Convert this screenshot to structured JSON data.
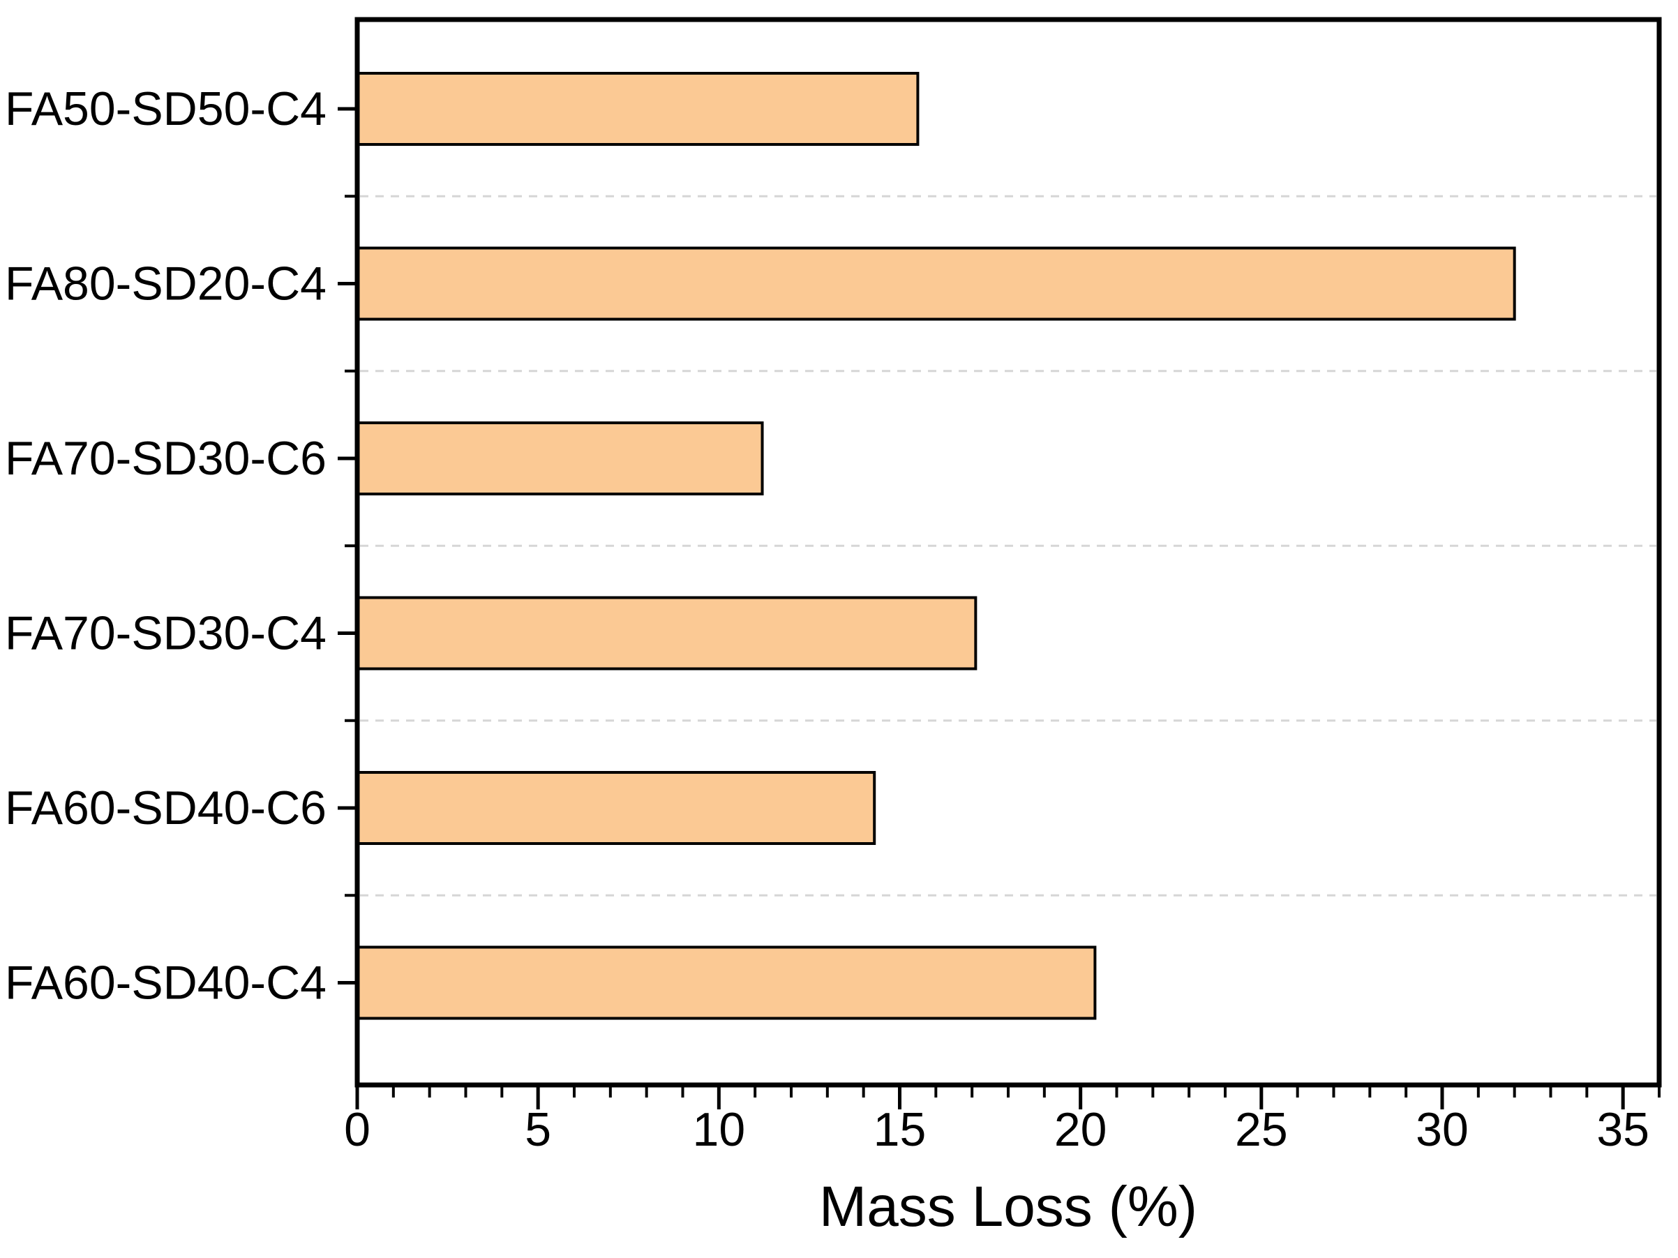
{
  "figure": {
    "background": "#ffffff"
  },
  "chart_data": {
    "type": "bar",
    "orientation": "horizontal",
    "title": "",
    "xlabel": "Mass Loss (%)",
    "ylabel": "",
    "categories_top_to_bottom": [
      "FA50-SD50-C4",
      "FA80-SD20-C4",
      "FA70-SD30-C6",
      "FA70-SD30-C4",
      "FA60-SD40-C6",
      "FA60-SD40-C4"
    ],
    "values": [
      15.5,
      32.0,
      11.2,
      17.1,
      14.3,
      20.4
    ],
    "xlim": [
      0,
      36
    ],
    "x_ticks": [
      0,
      5,
      10,
      15,
      20,
      25,
      30,
      35
    ],
    "x_minor_tick_interval": 1,
    "grid": "dashed horizontal gridlines at minor ticks between categories",
    "legend": "none",
    "bar_fill": "#fbc994",
    "bar_border": "#000000",
    "axis_color": "#000000",
    "gridline_color": "#d6d6d6",
    "text_color": "#000000"
  }
}
